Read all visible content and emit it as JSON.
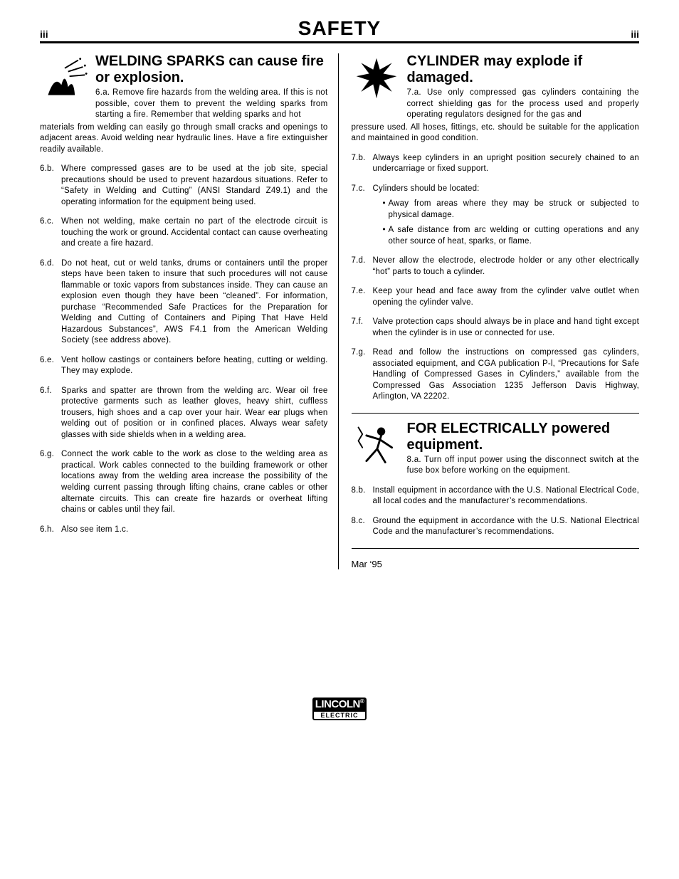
{
  "header": {
    "left_roman": "iii",
    "title": "SAFETY",
    "right_roman": "iii"
  },
  "left_column": {
    "section1": {
      "title": "WELDING SPARKS can cause fire or explosion.",
      "lead_id": "6.a.",
      "lead_text": "Remove fire hazards from the welding area. If this is not possible, cover them to prevent the welding sparks from starting a fire. Remember that welding sparks and hot",
      "continuation": "materials from welding can easily go through small cracks and openings to adjacent areas. Avoid welding near hydraulic lines. Have a fire extinguisher readily available.",
      "items": [
        {
          "id": "6.b.",
          "text": "Where compressed gases are to be used at the job site, special precautions should be used to prevent hazardous situations. Refer to “Safety in Welding and Cutting” (ANSI Standard Z49.1) and the operating information for the equipment being used."
        },
        {
          "id": "6.c.",
          "text": "When not welding, make certain no part of the electrode circuit is touching the work or ground. Accidental contact can cause overheating and create a fire hazard."
        },
        {
          "id": "6.d.",
          "text": "Do not heat, cut or weld tanks, drums or containers until the proper steps have been taken to insure that such procedures will not cause flammable or toxic vapors from substances inside. They can cause an explosion even though they have been “cleaned”. For information, purchase “Recommended Safe Practices for the Preparation for Welding and Cutting of Containers and Piping That Have Held Hazardous Substances”, AWS F4.1 from the American Welding Society (see address above)."
        },
        {
          "id": "6.e.",
          "text": "Vent hollow castings or containers before heating, cutting or welding. They may explode."
        },
        {
          "id": "6.f.",
          "text": "Sparks and spatter are thrown from the welding arc. Wear oil free protective garments such as leather gloves, heavy shirt, cuffless trousers, high shoes and a cap over your hair. Wear ear plugs when welding out of position or in confined places. Always wear safety glasses with side shields when in a welding area."
        },
        {
          "id": "6.g.",
          "text": "Connect the work cable to the work as close to the welding area as practical. Work cables connected to the building framework or other locations away from the welding area increase the possibility of the welding current passing through lifting chains, crane cables or other alternate circuits. This can create fire hazards or overheat lifting chains or cables until they fail."
        },
        {
          "id": "6.h.",
          "text": "Also see item 1.c."
        }
      ]
    }
  },
  "right_column": {
    "section2": {
      "title": "CYLINDER may explode if damaged.",
      "lead_id": "7.a.",
      "lead_text": "Use only compressed gas cylinders containing the correct shielding gas for the process used and properly operating regulators designed for the gas and",
      "continuation": "pressure used. All hoses, fittings, etc. should be suitable for the application and maintained in good condition.",
      "items": [
        {
          "id": "7.b.",
          "text": "Always keep cylinders in an upright position securely chained to an undercarriage or fixed support."
        },
        {
          "id": "7.c.",
          "text": "Cylinders should be located:",
          "sub": [
            "Away from areas where they may be struck or subjected to physical damage.",
            "A safe distance from arc welding or cutting operations and any other source of heat, sparks, or flame."
          ]
        },
        {
          "id": "7.d.",
          "text": "Never allow the electrode, electrode holder or any other electrically “hot” parts to touch a cylinder."
        },
        {
          "id": "7.e.",
          "text": "Keep your head and face away from the cylinder valve outlet when opening the cylinder valve."
        },
        {
          "id": "7.f.",
          "text": "Valve protection caps should always be in place and hand tight except when the cylinder is in use or connected for use."
        },
        {
          "id": "7.g.",
          "text": "Read and follow the instructions on compressed gas cylinders, associated equipment, and CGA publication P-l, “Precautions for Safe Handling of Compressed Gases in Cylinders,” available from the Compressed Gas Association 1235 Jefferson Davis Highway, Arlington, VA 22202."
        }
      ]
    },
    "section3": {
      "title": "FOR ELECTRICALLY powered equipment.",
      "lead_id": "8.a.",
      "lead_text": "Turn off input power using the disconnect switch at the fuse box before working on the equipment.",
      "items": [
        {
          "id": "8.b.",
          "text": "Install equipment in accordance with the U.S. National Electrical Code, all local codes and the manufacturer’s recommendations."
        },
        {
          "id": "8.c.",
          "text": "Ground the equipment in accordance with the U.S. National Electrical Code and the manufacturer’s recommendations."
        }
      ]
    },
    "date": "Mar ‘95"
  },
  "footer": {
    "logo_top": "LINCOLN",
    "logo_bot": "ELECTRIC"
  },
  "colors": {
    "text": "#000000",
    "background": "#ffffff",
    "rule": "#000000"
  },
  "typography": {
    "body_fontsize_pt": 9,
    "title_fontsize_pt": 22,
    "section_title_fontsize_pt": 15,
    "font_family": "Arial"
  }
}
